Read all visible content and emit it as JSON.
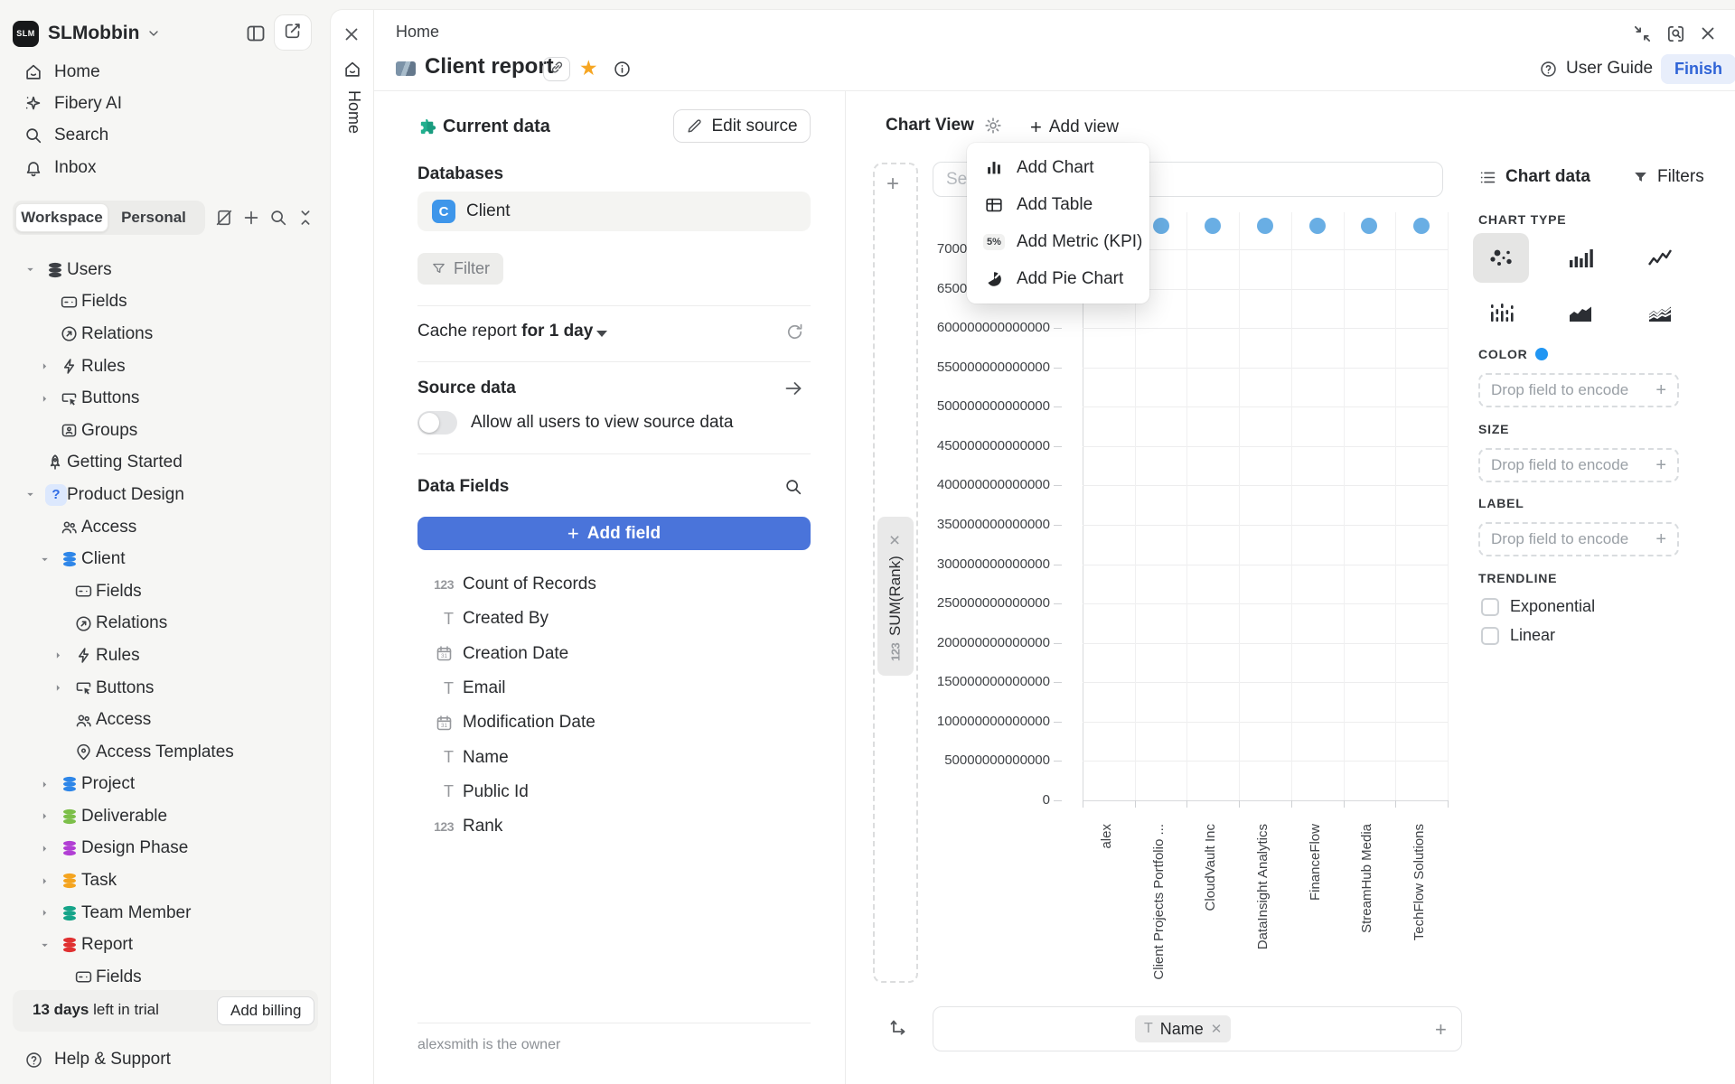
{
  "sidebar": {
    "workspace_name": "SLMobbin",
    "nav": [
      {
        "icon": "home",
        "label": "Home"
      },
      {
        "icon": "sparkle",
        "label": "Fibery AI"
      },
      {
        "icon": "search",
        "label": "Search"
      },
      {
        "icon": "bell",
        "label": "Inbox"
      }
    ],
    "tabs": {
      "workspace": "Workspace",
      "personal": "Personal"
    },
    "tree": [
      {
        "label": "Users",
        "icon": "db",
        "color": "#3d4045",
        "level": 0,
        "chevron": "down"
      },
      {
        "label": "Fields",
        "icon": "card",
        "level": 1
      },
      {
        "label": "Relations",
        "icon": "relation",
        "level": 1
      },
      {
        "label": "Rules",
        "icon": "bolt",
        "level": 1,
        "chevron": "right"
      },
      {
        "label": "Buttons",
        "icon": "cursor",
        "level": 1,
        "chevron": "right"
      },
      {
        "label": "Groups",
        "icon": "group",
        "level": 1
      },
      {
        "label": "Getting Started",
        "icon": "rocket",
        "level": 0
      },
      {
        "label": "Product Design",
        "icon": "qbadge",
        "level": 0,
        "chevron": "down"
      },
      {
        "label": "Access",
        "icon": "people",
        "level": 1
      },
      {
        "label": "Client",
        "icon": "db",
        "color": "#2e86e8",
        "level": 1,
        "chevron": "down"
      },
      {
        "label": "Fields",
        "icon": "card",
        "level": 2
      },
      {
        "label": "Relations",
        "icon": "relation",
        "level": 2
      },
      {
        "label": "Rules",
        "icon": "bolt",
        "level": 2,
        "chevron": "right"
      },
      {
        "label": "Buttons",
        "icon": "cursor",
        "level": 2,
        "chevron": "right"
      },
      {
        "label": "Access",
        "icon": "people",
        "level": 2
      },
      {
        "label": "Access Templates",
        "icon": "pin",
        "level": 2
      },
      {
        "label": "Project",
        "icon": "db",
        "color": "#2e86e8",
        "level": 1,
        "chevron": "right"
      },
      {
        "label": "Deliverable",
        "icon": "db",
        "color": "#7cbf49",
        "level": 1,
        "chevron": "right"
      },
      {
        "label": "Design Phase",
        "icon": "db",
        "color": "#b13fd4",
        "level": 1,
        "chevron": "right"
      },
      {
        "label": "Task",
        "icon": "db",
        "color": "#f4a41f",
        "level": 1,
        "chevron": "right"
      },
      {
        "label": "Team Member",
        "icon": "db",
        "color": "#16a489",
        "level": 1,
        "chevron": "right"
      },
      {
        "label": "Report",
        "icon": "db",
        "color": "#e03131",
        "level": 1,
        "chevron": "down"
      },
      {
        "label": "Fields",
        "icon": "card",
        "level": 2
      }
    ],
    "trial": {
      "bold": "13 days",
      "rest": " left in trial",
      "button": "Add billing"
    },
    "help": "Help & Support"
  },
  "rail": {
    "tab": "Home"
  },
  "window": {
    "user_guide": "User Guide",
    "finish": "Finish"
  },
  "report": {
    "breadcrumb": "Home",
    "title": "Client report",
    "current_data": "Current data",
    "edit_source": "Edit source",
    "databases_label": "Databases",
    "database_name": "Client",
    "database_badge": "C",
    "filter_label": "Filter",
    "cache_label": "Cache report ",
    "cache_value": "for 1 day",
    "source_data_label": "Source data",
    "allow_label": "Allow all users to view source data",
    "data_fields_label": "Data Fields",
    "add_field_label": "Add field",
    "fields": [
      {
        "type": "number",
        "name": "Count of Records"
      },
      {
        "type": "text",
        "name": "Created By"
      },
      {
        "type": "date",
        "name": "Creation Date"
      },
      {
        "type": "text",
        "name": "Email"
      },
      {
        "type": "date",
        "name": "Modification Date"
      },
      {
        "type": "text",
        "name": "Name"
      },
      {
        "type": "text",
        "name": "Public Id"
      },
      {
        "type": "number",
        "name": "Rank"
      }
    ],
    "owner_note": "alexsmith is the owner"
  },
  "view": {
    "view_tab": "Chart View",
    "add_view": "Add view",
    "set_placeholder": "Set",
    "menu": [
      {
        "icon": "minibar",
        "label": "Add Chart"
      },
      {
        "icon": "table",
        "label": "Add Table"
      },
      {
        "icon": "kpi",
        "kpi_text": "5%",
        "label": "Add Metric (KPI)"
      },
      {
        "icon": "pie",
        "label": "Add Pie Chart"
      }
    ],
    "y_field_pill": "SUM(Rank)",
    "y_field_type": "123",
    "x_field_pill": "Name"
  },
  "chart_data": {
    "type": "scatter",
    "x_field": "Name",
    "y_field": "SUM(Rank)",
    "categories": [
      "alex",
      "Client Projects Portfolio ...",
      "CloudVault Inc",
      "DataInsight Analytics",
      "FinanceFlow",
      "StreamHub Media",
      "TechFlow Solutions"
    ],
    "series": [
      {
        "name": "SUM(Rank)",
        "values": [
          730000000000000,
          730000000000000,
          730000000000000,
          730000000000000,
          730000000000000,
          730000000000000,
          730000000000000
        ]
      }
    ],
    "ylim": [
      0,
      700000000000000
    ],
    "y_tick_step": 50000000000000,
    "y_ticks": [
      "0",
      "50000000000000",
      "100000000000000",
      "150000000000000",
      "200000000000000",
      "250000000000000",
      "300000000000000",
      "350000000000000",
      "400000000000000",
      "450000000000000",
      "500000000000000",
      "550000000000000",
      "600000000000000",
      "650000000000000",
      "700000000000000"
    ],
    "grid": true,
    "legend": "none",
    "point_color": "#69aee4"
  },
  "inspector": {
    "tabs": {
      "chart_data": "Chart data",
      "filters": "Filters"
    },
    "chart_type_label": "CHART TYPE",
    "chart_types": [
      "scatter",
      "columns",
      "line",
      "dotcols",
      "area",
      "stackedarea"
    ],
    "selected_chart_type": "scatter",
    "encodings": [
      {
        "label": "COLOR",
        "has_dot": true,
        "dot_color": "#2196f3",
        "placeholder": "Drop field to encode"
      },
      {
        "label": "SIZE",
        "has_dot": false,
        "placeholder": "Drop field to encode"
      },
      {
        "label": "LABEL",
        "has_dot": false,
        "placeholder": "Drop field to encode"
      }
    ],
    "trendline_label": "TRENDLINE",
    "trendline_options": [
      "Exponential",
      "Linear"
    ]
  }
}
